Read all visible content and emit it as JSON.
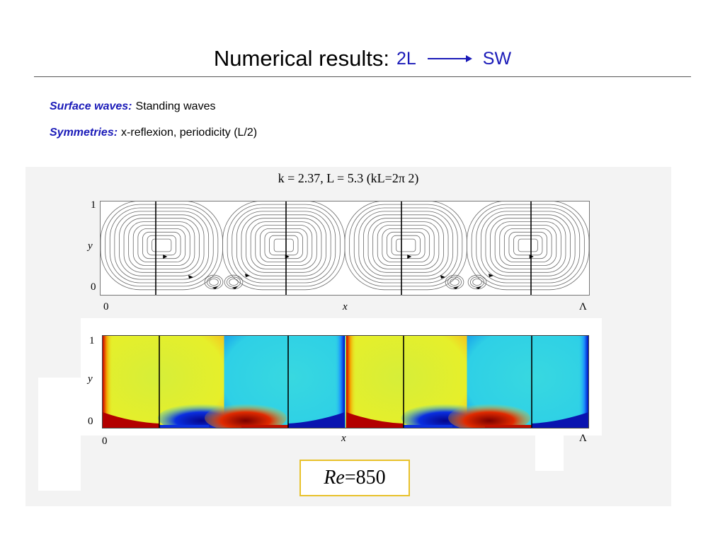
{
  "slide": {
    "title": "Numerical results:",
    "title_from": "2L",
    "title_to": "SW",
    "bullets": [
      {
        "key": "Surface waves:",
        "text": "Standing waves"
      },
      {
        "key": "Symmetries:",
        "text": "x-reflexion, periodicity (L/2)"
      }
    ]
  },
  "figure": {
    "caption": "k = 2.37, L = 5.3 (kL=2π 2)",
    "top_panel": {
      "y_label": "y",
      "x_label": "x",
      "y_ticks": [
        "1",
        "0"
      ],
      "x_ticks": [
        "0",
        "Λ"
      ]
    },
    "bottom_panel": {
      "y_label": "y",
      "x_label": "x",
      "y_ticks": [
        "1",
        "0"
      ],
      "x_ticks": [
        "0",
        "Λ"
      ]
    },
    "reynolds": {
      "symbol": "Re",
      "equals": " = ",
      "value": "850"
    }
  },
  "colors": {
    "accent_blue": "#1a1ab8",
    "highlight_box": "#e8c12a"
  }
}
